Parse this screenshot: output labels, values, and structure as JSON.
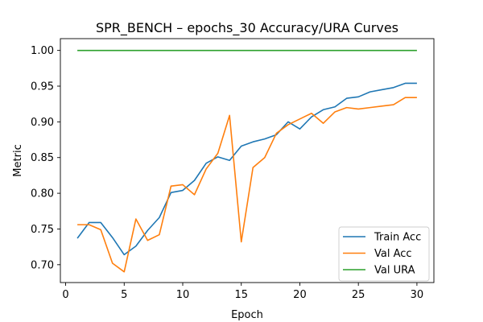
{
  "chart_data": {
    "type": "line",
    "title": "SPR_BENCH – epochs_30 Accuracy/URA Curves",
    "xlabel": "Epoch",
    "ylabel": "Metric",
    "xlim": [
      -0.45,
      31.45
    ],
    "ylim": [
      0.675,
      1.0165
    ],
    "xticks": [
      0,
      5,
      10,
      15,
      20,
      25,
      30
    ],
    "yticks": [
      0.7,
      0.75,
      0.8,
      0.85,
      0.9,
      0.95,
      1.0
    ],
    "grid": false,
    "legend_position": "bottom-right",
    "x": [
      1,
      2,
      3,
      4,
      5,
      6,
      7,
      8,
      9,
      10,
      11,
      12,
      13,
      14,
      15,
      16,
      17,
      18,
      19,
      20,
      21,
      22,
      23,
      24,
      25,
      26,
      27,
      28,
      29,
      30
    ],
    "series": [
      {
        "name": "Train Acc",
        "color": "#1f77b4",
        "values": [
          0.737,
          0.759,
          0.759,
          0.738,
          0.714,
          0.726,
          0.748,
          0.766,
          0.801,
          0.804,
          0.818,
          0.842,
          0.851,
          0.846,
          0.866,
          0.872,
          0.876,
          0.882,
          0.9,
          0.89,
          0.907,
          0.917,
          0.921,
          0.933,
          0.935,
          0.942,
          0.945,
          0.948,
          0.954,
          0.954
        ]
      },
      {
        "name": "Val Acc",
        "color": "#ff7f0e",
        "values": [
          0.756,
          0.756,
          0.749,
          0.702,
          0.69,
          0.764,
          0.734,
          0.742,
          0.81,
          0.812,
          0.798,
          0.834,
          0.856,
          0.909,
          0.732,
          0.836,
          0.85,
          0.884,
          0.896,
          0.904,
          0.912,
          0.898,
          0.914,
          0.92,
          0.918,
          0.92,
          0.922,
          0.924,
          0.934,
          0.934
        ]
      },
      {
        "name": "Val URA",
        "color": "#2ca02c",
        "values": [
          1.0,
          1.0,
          1.0,
          1.0,
          1.0,
          1.0,
          1.0,
          1.0,
          1.0,
          1.0,
          1.0,
          1.0,
          1.0,
          1.0,
          1.0,
          1.0,
          1.0,
          1.0,
          1.0,
          1.0,
          1.0,
          1.0,
          1.0,
          1.0,
          1.0,
          1.0,
          1.0,
          1.0,
          1.0,
          1.0
        ]
      }
    ]
  }
}
